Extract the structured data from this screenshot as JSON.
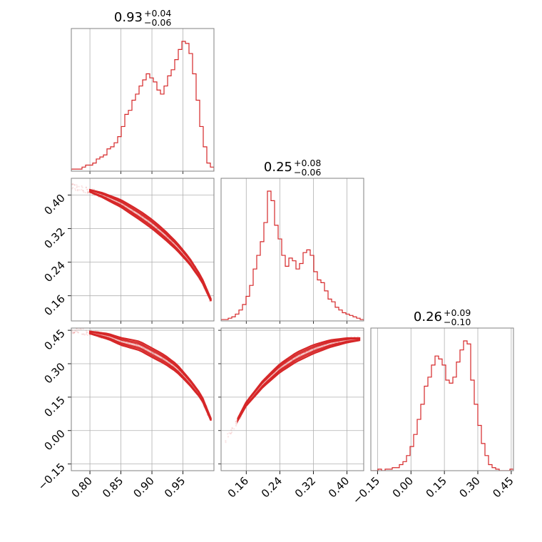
{
  "chart_data": {
    "type": "corner",
    "colors": {
      "accent": "#d62728",
      "grid": "#b0b0b0",
      "frame": "#808080"
    },
    "parameters": [
      {
        "median": "0.93",
        "plus": "+0.04",
        "minus": "−0.06",
        "range": [
          0.77,
          1.0
        ],
        "ticks": [
          0.8,
          0.85,
          0.9,
          0.95
        ],
        "tick_labels": [
          "0.80",
          "0.85",
          "0.90",
          "0.95"
        ]
      },
      {
        "median": "0.25",
        "plus": "+0.08",
        "minus": "−0.06",
        "range": [
          0.1,
          0.44
        ],
        "ticks": [
          0.16,
          0.24,
          0.32,
          0.4
        ],
        "tick_labels": [
          "0.16",
          "0.24",
          "0.32",
          "0.40"
        ]
      },
      {
        "median": "0.26",
        "plus": "+0.09",
        "minus": "−0.10",
        "range": [
          -0.18,
          0.46
        ],
        "ticks": [
          -0.15,
          0.0,
          0.15,
          0.3,
          0.45
        ],
        "tick_labels": [
          "−0.15",
          "0.00",
          "0.15",
          "0.30",
          "0.45"
        ]
      }
    ],
    "histograms": [
      {
        "x_start": 0.77,
        "bin_width": 0.00575,
        "counts": [
          1,
          1,
          1,
          2,
          3,
          3,
          4,
          6,
          7,
          8,
          11,
          12,
          14,
          17,
          22,
          28,
          30,
          35,
          38,
          42,
          45,
          48,
          46,
          44,
          40,
          38,
          42,
          47,
          50,
          55,
          60,
          64,
          63,
          58,
          48,
          35,
          22,
          12,
          4,
          2
        ]
      },
      {
        "x_start": 0.1,
        "bin_width": 0.0085,
        "counts": [
          1,
          1,
          2,
          3,
          5,
          8,
          12,
          18,
          26,
          38,
          48,
          58,
          72,
          95,
          88,
          70,
          60,
          48,
          40,
          46,
          44,
          38,
          42,
          50,
          52,
          48,
          36,
          30,
          28,
          22,
          16,
          14,
          10,
          8,
          6,
          5,
          4,
          3,
          2,
          1
        ]
      },
      {
        "x_start": -0.18,
        "bin_width": 0.016,
        "counts": [
          0,
          0,
          1,
          0,
          1,
          1,
          2,
          2,
          4,
          6,
          10,
          16,
          24,
          34,
          44,
          56,
          62,
          70,
          76,
          74,
          70,
          60,
          58,
          62,
          72,
          80,
          86,
          84,
          60,
          44,
          30,
          18,
          10,
          4,
          2,
          1,
          0,
          0,
          0,
          1
        ]
      }
    ],
    "pairs": [
      {
        "x_param": 0,
        "y_param": 1,
        "ridge": [
          [
            0.77,
            0.42
          ],
          [
            0.8,
            0.41
          ],
          [
            0.82,
            0.4
          ],
          [
            0.85,
            0.38
          ],
          [
            0.88,
            0.352
          ],
          [
            0.9,
            0.331
          ],
          [
            0.92,
            0.306
          ],
          [
            0.94,
            0.278
          ],
          [
            0.96,
            0.244
          ],
          [
            0.98,
            0.2
          ],
          [
            0.995,
            0.15
          ]
        ]
      },
      {
        "x_param": 0,
        "y_param": 2,
        "ridge": [
          [
            0.77,
            0.45
          ],
          [
            0.8,
            0.44
          ],
          [
            0.83,
            0.422
          ],
          [
            0.85,
            0.4
          ],
          [
            0.88,
            0.38
          ],
          [
            0.9,
            0.35
          ],
          [
            0.92,
            0.32
          ],
          [
            0.94,
            0.28
          ],
          [
            0.96,
            0.22
          ],
          [
            0.98,
            0.15
          ],
          [
            0.995,
            0.05
          ]
        ]
      },
      {
        "x_param": 1,
        "y_param": 2,
        "ridge": [
          [
            0.11,
            -0.05
          ],
          [
            0.14,
            0.05
          ],
          [
            0.16,
            0.12
          ],
          [
            0.2,
            0.21
          ],
          [
            0.24,
            0.28
          ],
          [
            0.28,
            0.33
          ],
          [
            0.32,
            0.365
          ],
          [
            0.36,
            0.39
          ],
          [
            0.4,
            0.405
          ],
          [
            0.43,
            0.41
          ]
        ]
      }
    ]
  }
}
